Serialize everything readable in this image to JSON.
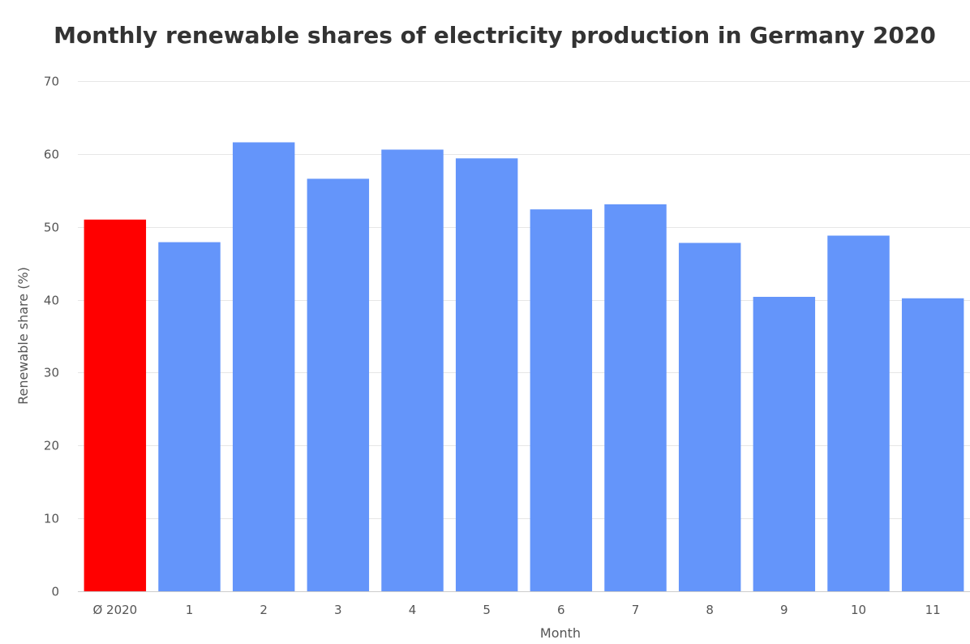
{
  "chart_data": {
    "type": "bar",
    "title": "Monthly renewable shares of electricity production in Germany 2020",
    "xlabel": "Month",
    "ylabel": "Renewable share (%)",
    "ylim": [
      0,
      70
    ],
    "yticks": [
      0,
      10,
      20,
      30,
      40,
      50,
      60,
      70
    ],
    "grid": true,
    "legend": "none",
    "categories": [
      "Ø 2020",
      "1",
      "2",
      "3",
      "4",
      "5",
      "6",
      "7",
      "8",
      "9",
      "10",
      "11"
    ],
    "values": [
      51.0,
      47.9,
      61.6,
      56.6,
      60.6,
      59.4,
      52.4,
      53.1,
      47.8,
      40.4,
      48.8,
      40.2
    ],
    "colors": {
      "average": "#ff0000",
      "month": "#6495fa"
    }
  }
}
